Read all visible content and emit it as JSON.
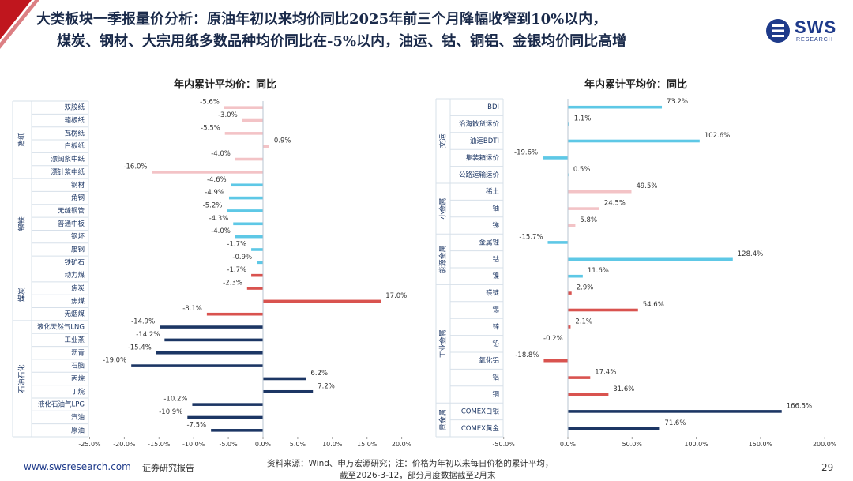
{
  "header": {
    "title_line1": "大类板块一季报量价分析：原油年初以来均价同比2025年前三个月降幅收窄到10%以内，",
    "title_line2": "煤炭、钢材、大宗用纸多数品种均价同比在-5%以内，油运、钴、铜铝、金银均价同比高增",
    "logo_text": "SWS",
    "logo_sub": "RESEARCH",
    "logo_icon": "sws-logo-icon"
  },
  "colors": {
    "header_red": "#c0161e",
    "navy": "#1c3664",
    "sky": "#5ec8e6",
    "pink": "#f3c3c6",
    "red": "#d9534f"
  },
  "chart_data": [
    {
      "type": "bar",
      "orientation": "horizontal",
      "title": "年内累计平均价：同比",
      "xlim": [
        -25,
        20
      ],
      "xticks": [
        -25,
        -20,
        -15,
        -10,
        -5,
        0,
        5,
        10,
        15,
        20
      ],
      "tick_labels": [
        "-25.0%",
        "-20.0%",
        "-15.0%",
        "-10.0%",
        "-5.0%",
        "0.0%",
        "5.0%",
        "10.0%",
        "15.0%",
        "20.0%"
      ],
      "groups": [
        {
          "name": "造纸",
          "color": "pink",
          "items": [
            {
              "label": "双胶纸",
              "value": -5.6,
              "value_label": "-5.6%"
            },
            {
              "label": "箱板纸",
              "value": -3.0,
              "value_label": "-3.0%"
            },
            {
              "label": "瓦楞纸",
              "value": -5.5,
              "value_label": "-5.5%"
            },
            {
              "label": "白板纸",
              "value": 0.9,
              "value_label": "0.9%"
            },
            {
              "label": "漂阔浆中纸",
              "value": -4.0,
              "value_label": "-4.0%"
            },
            {
              "label": "漂针浆中纸",
              "value": -16.0,
              "value_label": "-16.0%"
            }
          ]
        },
        {
          "name": "钢铁",
          "color": "sky",
          "items": [
            {
              "label": "钢材",
              "value": -4.6,
              "value_label": "-4.6%"
            },
            {
              "label": "角钢",
              "value": -4.9,
              "value_label": "-4.9%"
            },
            {
              "label": "无缝钢管",
              "value": -5.2,
              "value_label": "-5.2%"
            },
            {
              "label": "普通中板",
              "value": -4.3,
              "value_label": "-4.3%"
            },
            {
              "label": "钢坯",
              "value": -4.0,
              "value_label": "-4.0%"
            },
            {
              "label": "废钢",
              "value": -1.7,
              "value_label": "-1.7%"
            },
            {
              "label": "铁矿石",
              "value": -0.9,
              "value_label": "-0.9%"
            }
          ]
        },
        {
          "name": "煤炭",
          "color": "red",
          "items": [
            {
              "label": "动力煤",
              "value": -1.7,
              "value_label": "-1.7%"
            },
            {
              "label": "焦炭",
              "value": -2.3,
              "value_label": "-2.3%"
            },
            {
              "label": "焦煤",
              "value": 17.0,
              "value_label": "17.0%"
            },
            {
              "label": "无烟煤",
              "value": -8.1,
              "value_label": "-8.1%"
            }
          ]
        },
        {
          "name": "石油石化",
          "color": "navy",
          "items": [
            {
              "label": "液化天然气LNG",
              "value": -14.9,
              "value_label": "-14.9%"
            },
            {
              "label": "工业蒸",
              "value": -14.2,
              "value_label": "-14.2%"
            },
            {
              "label": "沥青",
              "value": -15.4,
              "value_label": "-15.4%"
            },
            {
              "label": "石脑",
              "value": -19.0,
              "value_label": "-19.0%"
            },
            {
              "label": "丙烷",
              "value": 6.2,
              "value_label": "6.2%"
            },
            {
              "label": "丁烷",
              "value": 7.2,
              "value_label": "7.2%"
            },
            {
              "label": "液化石油气LPG",
              "value": -10.2,
              "value_label": "-10.2%"
            },
            {
              "label": "汽油",
              "value": -10.9,
              "value_label": "-10.9%"
            },
            {
              "label": "原油",
              "value": -7.5,
              "value_label": "-7.5%"
            }
          ]
        }
      ]
    },
    {
      "type": "bar",
      "orientation": "horizontal",
      "title": "年内累计平均价：同比",
      "xlim": [
        -50,
        200
      ],
      "xticks": [
        -50,
        0,
        50,
        100,
        150,
        200
      ],
      "tick_labels": [
        "-50.0%",
        "0.0%",
        "50.0%",
        "100.0%",
        "150.0%",
        "200.0%"
      ],
      "groups": [
        {
          "name": "交运",
          "color": "sky",
          "items": [
            {
              "label": "BDI",
              "value": 73.2,
              "value_label": "73.2%"
            },
            {
              "label": "沿海散货运价",
              "value": 1.1,
              "value_label": "1.1%"
            },
            {
              "label": "油运BDTI",
              "value": 102.6,
              "value_label": "102.6%"
            },
            {
              "label": "集装箱运价",
              "value": -19.6,
              "value_label": "-19.6%"
            },
            {
              "label": "公路运输运价",
              "value": 0.5,
              "value_label": "0.5%"
            }
          ]
        },
        {
          "name": "小金属",
          "color": "pink",
          "items": [
            {
              "label": "稀土",
              "value": 49.5,
              "value_label": "49.5%"
            },
            {
              "label": "铀",
              "value": 24.5,
              "value_label": "24.5%"
            },
            {
              "label": "锑",
              "value": 5.8,
              "value_label": "5.8%"
            }
          ]
        },
        {
          "name": "能源金属",
          "color": "sky",
          "items": [
            {
              "label": "金属锂",
              "value": -15.7,
              "value_label": "-15.7%"
            },
            {
              "label": "钴",
              "value": 128.4,
              "value_label": "128.4%"
            },
            {
              "label": "镍",
              "value": 11.6,
              "value_label": "11.6%"
            }
          ]
        },
        {
          "name": "工业金属",
          "color": "red",
          "items": [
            {
              "label": "镁锭",
              "value": 2.9,
              "value_label": "2.9%"
            },
            {
              "label": "锡",
              "value": 54.6,
              "value_label": "54.6%"
            },
            {
              "label": "锌",
              "value": 2.1,
              "value_label": "2.1%"
            },
            {
              "label": "铅",
              "value": -0.2,
              "value_label": "-0.2%"
            },
            {
              "label": "氧化铝",
              "value": -18.8,
              "value_label": "-18.8%"
            },
            {
              "label": "铝",
              "value": 17.4,
              "value_label": "17.4%"
            },
            {
              "label": "铜",
              "value": 31.6,
              "value_label": "31.6%"
            }
          ]
        },
        {
          "name": "贵金属",
          "color": "navy",
          "items": [
            {
              "label": "COMEX白银",
              "value": 166.5,
              "value_label": "166.5%"
            },
            {
              "label": "COMEX黄金",
              "value": 71.6,
              "value_label": "71.6%"
            }
          ]
        }
      ]
    }
  ],
  "footer": {
    "url": "www.swsresearch.com",
    "report_type": "证券研究报告",
    "source_line1": "资料来源：Wind、申万宏源研究；注：价格为年初以来每日价格的累计平均，",
    "source_line2": "截至2026-3-12，部分月度数据截至2月末",
    "page_number": "29"
  }
}
